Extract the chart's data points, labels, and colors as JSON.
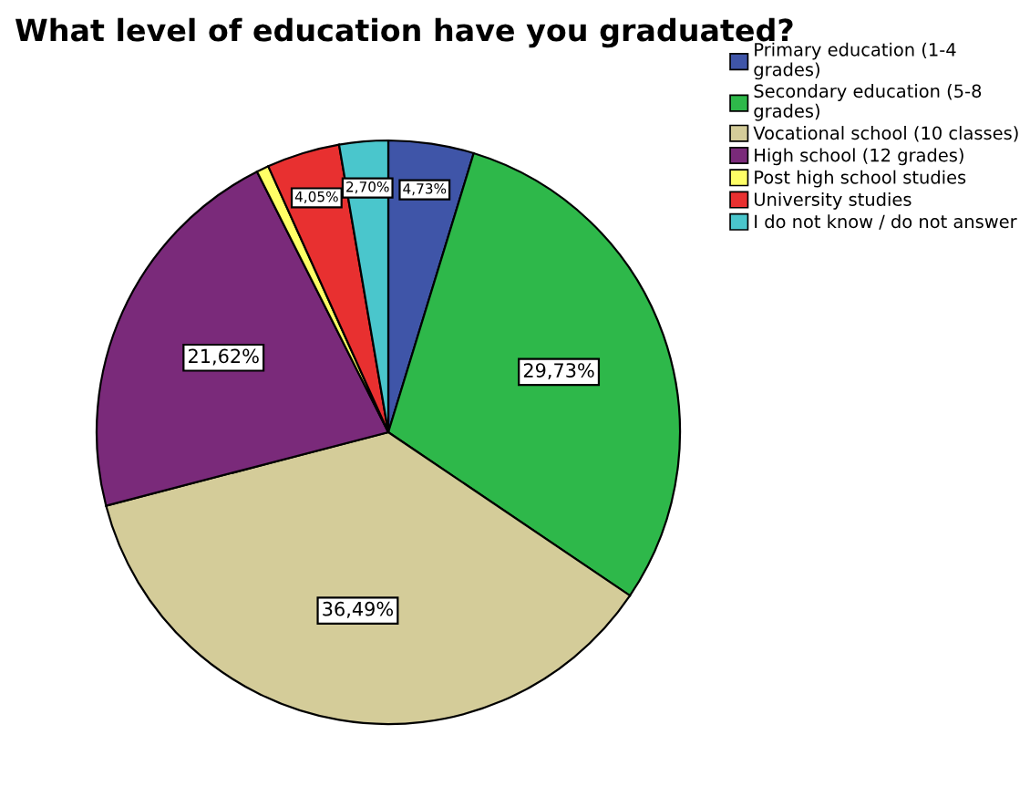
{
  "chart_data": {
    "type": "pie",
    "title": "What level of education have you graduated?",
    "categories": [
      "Primary education (1-4\ngrades)",
      "Secondary education (5-8\ngrades)",
      "Vocational school (10 classes)",
      "High school (12 grades)",
      "Post high school studies",
      "University studies",
      "I do not know / do not answer"
    ],
    "values": [
      4.73,
      29.73,
      36.49,
      21.62,
      0.68,
      4.05,
      2.7
    ],
    "value_labels": [
      "4,73%",
      "29,73%",
      "36,49%",
      "21,62%",
      null,
      "4,05%",
      "2,70%"
    ],
    "colors": [
      "#3f55a8",
      "#2eb84a",
      "#d4cc99",
      "#7a2a7a",
      "#ffff66",
      "#e83030",
      "#4ac6cc"
    ],
    "legend": "top right"
  }
}
